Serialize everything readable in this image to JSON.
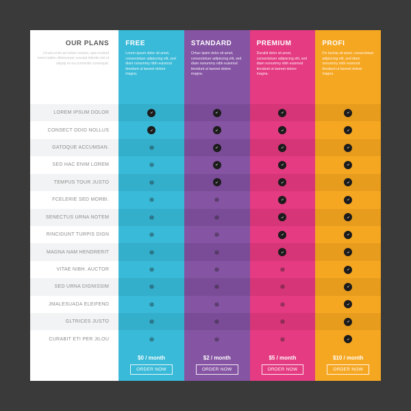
{
  "type": "pricing-table",
  "colors": {
    "page_bg": "#3a3a3a",
    "card_bg": "#ffffff",
    "label_alt_row": "#f2f3f4",
    "icon_fill": "#1c1c1c"
  },
  "intro": {
    "title": "OUR PLANS",
    "desc": "Ut wisi enim ad minim veniam, quis nostrud exerci tation ullamcorper suscipit lobortis nisl ut aliquip ex ea commodo consequat."
  },
  "features": [
    "LOREM IPSUM DOLOR",
    "CONSECT ODIO NOLLUS",
    "GATOQUE ACCUMSAN.",
    "SED HAC ENIM LOREM",
    "TEMPUS TOUR JUSTO",
    "FCELERIE SED MORBI.",
    "SENECTUS URNA NOTEM",
    "RINCIDUNT TURPIS DIGN",
    "MAGNA NAM HENDRERIT",
    "VITAE NIBH. AUCTOR",
    "SED URNA DIGNISSIM",
    "JMALESUADA ELEIFEND",
    "GLTRICES JUSTO",
    "CURABIT ETI PER JILOU"
  ],
  "plans": [
    {
      "name": "FREE",
      "desc": "Lorem ipsum dolor sit amet, consectetuer adipiscing elit, sed diam nonummy nibh euismod tincidunt ut laoreet dolore magna.",
      "price": "$0 / month",
      "order": "ORDER NOW",
      "bg": "#39bad8",
      "alt_bg": "#33aecb",
      "values": [
        true,
        true,
        false,
        false,
        false,
        false,
        false,
        false,
        false,
        false,
        false,
        false,
        false,
        false
      ]
    },
    {
      "name": "STANDARD",
      "desc": "Orhac ipsim dolor sit amet, consectetuer adipiscing elit, sed diam nonummy nibh euismod tincidunt ut laoreet dolore magna.",
      "price": "$2 / month",
      "order": "ORDER NOW",
      "bg": "#8554a3",
      "alt_bg": "#7a4c97",
      "values": [
        true,
        true,
        true,
        true,
        true,
        false,
        false,
        false,
        false,
        false,
        false,
        false,
        false,
        false
      ]
    },
    {
      "name": "PREMIUM",
      "desc": "Durabit dolor sit amet, consectetuer adipiscing elit, sed diam nonummy nibh euismod tincidunt ut laoreet dolore magna.",
      "price": "$5 / month",
      "order": "ORDER NOW",
      "bg": "#e43b82",
      "alt_bg": "#d63578",
      "values": [
        true,
        true,
        true,
        true,
        true,
        true,
        true,
        true,
        true,
        false,
        false,
        false,
        false,
        false
      ]
    },
    {
      "name": "PROFI",
      "desc": "Fin lacinia sit amet, consectetuer adipiscing elit, sed diam nonummy nibh euismod tincidunt ut laoreet dolore magna.",
      "price": "$10 / month",
      "order": "ORDER NOW",
      "bg": "#f6a722",
      "alt_bg": "#e89c1d",
      "values": [
        true,
        true,
        true,
        true,
        true,
        true,
        true,
        true,
        true,
        true,
        true,
        true,
        true,
        true
      ]
    }
  ]
}
